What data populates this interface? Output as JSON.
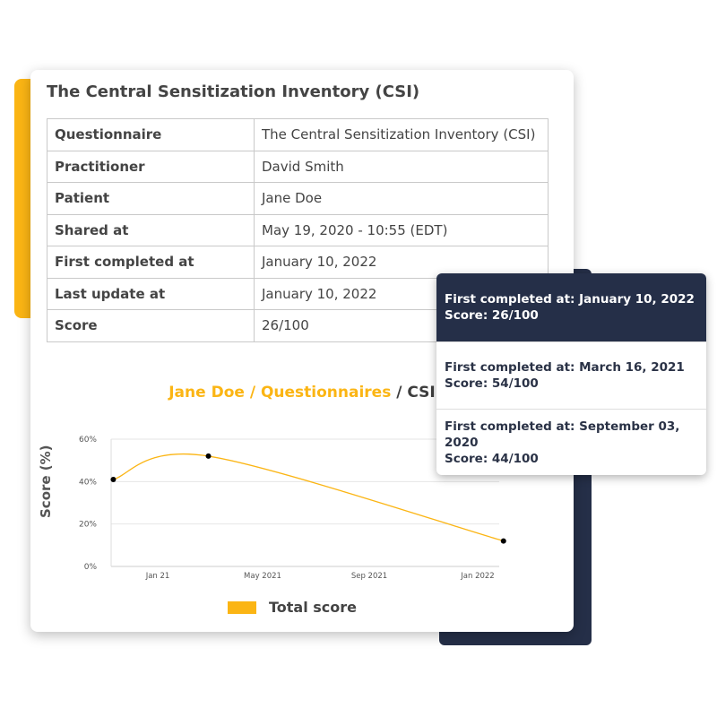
{
  "title": "The Central Sensitization Inventory (CSI)",
  "details": [
    {
      "label": "Questionnaire",
      "value": "The Central Sensitization Inventory (CSI)"
    },
    {
      "label": "Practitioner",
      "value": "David Smith"
    },
    {
      "label": "Patient",
      "value": "Jane Doe"
    },
    {
      "label": "Shared at",
      "value": "May 19, 2020  - 10:55 (EDT)"
    },
    {
      "label": "First completed at",
      "value": "January 10, 2022"
    },
    {
      "label": "Last update at",
      "value": "January 10, 2022"
    },
    {
      "label": "Score",
      "value": "26/100"
    }
  ],
  "breadcrumb": {
    "patient": "Jane Doe",
    "sep1": " / ",
    "section": "Questionnaires",
    "sep2": " / ",
    "current": "CSI"
  },
  "colors": {
    "accent": "#fbb514",
    "navy": "#252f48"
  },
  "chart_data": {
    "type": "line",
    "ylabel": "Score (%)",
    "ylim": [
      0,
      60
    ],
    "yticks": [
      "0%",
      "20%",
      "40%",
      "60%"
    ],
    "xticks": [
      "Jan 21",
      "May 2021",
      "Sep 2021",
      "Jan 2022"
    ],
    "grid": true,
    "legend": "bottom",
    "series": [
      {
        "name": "Total score",
        "x": [
          "2020-11-12",
          "2021-02-27",
          "2022-01-25"
        ],
        "y": [
          41,
          52,
          12
        ]
      }
    ]
  },
  "tooltip": [
    {
      "line1": "First completed at: January 10, 2022",
      "line2": "Score: 26/100",
      "active": true
    },
    {
      "line1": "First completed at: March 16, 2021",
      "line2": "Score: 54/100"
    },
    {
      "line1": "First completed at: September 03, 2020",
      "line2": "Score: 44/100"
    }
  ]
}
